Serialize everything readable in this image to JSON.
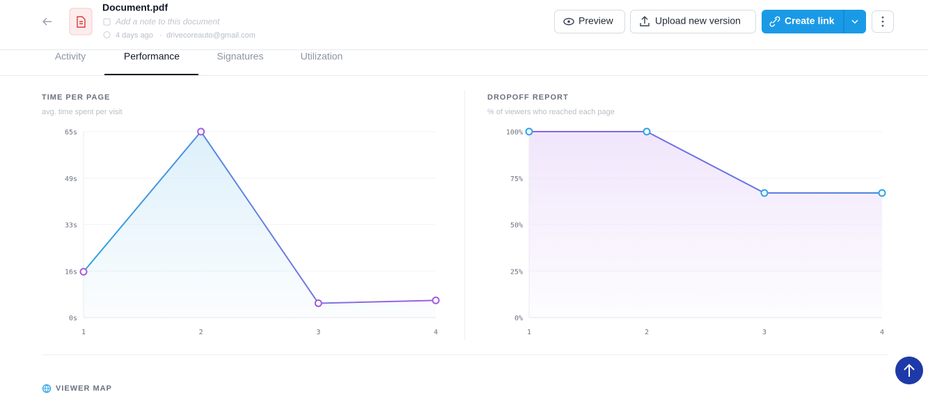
{
  "header": {
    "title": "Document.pdf",
    "note_placeholder": "Add a note to this document",
    "time": "4 days ago",
    "separator": "·",
    "email": "drivecoreauto@gmail.com",
    "buttons": {
      "preview": "Preview",
      "upload": "Upload new version",
      "create_link": "Create link"
    }
  },
  "tabs": [
    "Activity",
    "Performance",
    "Signatures",
    "Utilization"
  ],
  "active_tab": 1,
  "chart_data": [
    {
      "type": "line",
      "title": "TIME PER PAGE",
      "subtitle": "avg. time spent per visit",
      "x": [
        1,
        2,
        3,
        4
      ],
      "xlim": [
        1,
        4
      ],
      "xticks": [
        1,
        2,
        3,
        4
      ],
      "values": [
        16,
        65,
        5,
        6
      ],
      "ylim": [
        0,
        65
      ],
      "yticks": [
        {
          "value": 0,
          "label": "0s"
        },
        {
          "value": 16.25,
          "label": "16s"
        },
        {
          "value": 32.5,
          "label": "33s"
        },
        {
          "value": 48.75,
          "label": "49s"
        },
        {
          "value": 65,
          "label": "65s"
        }
      ],
      "grid": true,
      "line_colors": [
        "#2aa4e0",
        "#a35be0"
      ],
      "marker_color": "#a35be0",
      "area_color": "#d9eefa"
    },
    {
      "type": "line",
      "title": "DROPOFF REPORT",
      "subtitle": "% of viewers who reached each page",
      "x": [
        1,
        2,
        3,
        4
      ],
      "xlim": [
        1,
        4
      ],
      "xticks": [
        1,
        2,
        3,
        4
      ],
      "values": [
        100,
        100,
        67,
        67
      ],
      "ylim": [
        0,
        100
      ],
      "yticks": [
        {
          "value": 0,
          "label": "0%"
        },
        {
          "value": 25,
          "label": "25%"
        },
        {
          "value": 50,
          "label": "50%"
        },
        {
          "value": 75,
          "label": "75%"
        },
        {
          "value": 100,
          "label": "100%"
        }
      ],
      "grid": true,
      "line_colors": [
        "#8a63e6",
        "#4a7fe0"
      ],
      "marker_color": "#2aa4e0",
      "area_color": "#efe3fb"
    }
  ],
  "viewer_map": {
    "title": "VIEWER MAP"
  }
}
